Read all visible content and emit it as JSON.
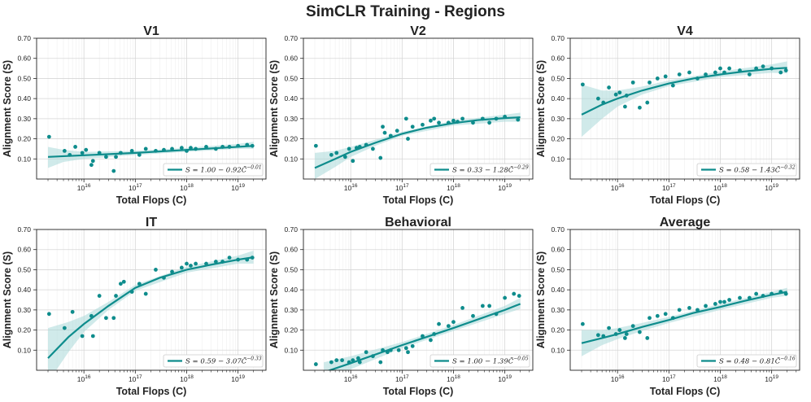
{
  "figure": {
    "title": "SimCLR Training - Regions"
  },
  "colors": {
    "teal": "#0e8c8c",
    "band": "#a9d9d9"
  },
  "chart_data": [
    {
      "type": "scatter",
      "title": "V1",
      "xlabel": "Total Flops (C)",
      "ylabel": "Alignment Score (S)",
      "xscale": "log",
      "xlim": [
        1200000000000000.0,
        3.5e+19
      ],
      "ylim": [
        0.0,
        0.7
      ],
      "x_ticks": [
        1e+16,
        1e+17,
        1e+18,
        1e+19
      ],
      "x_tick_labels": [
        "10^16",
        "10^17",
        "10^18",
        "10^19"
      ],
      "y_ticks": [
        0.1,
        0.2,
        0.3,
        0.4,
        0.5,
        0.6,
        0.7
      ],
      "y_tick_labels": [
        "0.10",
        "0.20",
        "0.30",
        "0.40",
        "0.50",
        "0.60",
        "0.70"
      ],
      "legend": {
        "label_main": "S = 1.00 − 0.92",
        "label_exp": "C̃^−0.01",
        "position": "lower-right"
      },
      "points": {
        "x": [
          2100000000000000.0,
          4200000000000000.0,
          5300000000000000.0,
          6800000000000000.0,
          9300000000000000.0,
          1.1e+16,
          1.4e+16,
          1.5e+16,
          2e+16,
          2.7e+16,
          3.8e+16,
          4.2e+16,
          5.2e+16,
          8.6e+16,
          1.2e+17,
          1.6e+17,
          2.5e+17,
          3.6e+17,
          5.2e+17,
          8e+17,
          1e+18,
          1.2e+18,
          1.5e+18,
          2.4e+18,
          3.7e+18,
          5e+18,
          6.8e+18,
          1e+19,
          1.5e+19,
          1.9e+19
        ],
        "y": [
          0.21,
          0.14,
          0.12,
          0.16,
          0.13,
          0.145,
          0.07,
          0.09,
          0.13,
          0.11,
          0.04,
          0.11,
          0.13,
          0.14,
          0.12,
          0.15,
          0.14,
          0.145,
          0.15,
          0.155,
          0.14,
          0.155,
          0.15,
          0.16,
          0.15,
          0.16,
          0.16,
          0.165,
          0.17,
          0.165
        ]
      },
      "fit": {
        "x": [
          2000000000000000.0,
          1e+16,
          1e+17,
          1e+18,
          1e+19,
          2e+19
        ],
        "y": [
          0.11,
          0.118,
          0.13,
          0.145,
          0.16,
          0.165
        ]
      },
      "band": {
        "x": [
          2000000000000000.0,
          4000000000000000.0,
          1e+16,
          1e+17,
          1e+18,
          1e+19,
          2e+19
        ],
        "upper": [
          0.16,
          0.145,
          0.135,
          0.14,
          0.155,
          0.175,
          0.185
        ],
        "lower": [
          0.055,
          0.085,
          0.1,
          0.12,
          0.135,
          0.15,
          0.15
        ]
      }
    },
    {
      "type": "scatter",
      "title": "V2",
      "xlabel": "Total Flops (C)",
      "ylabel": "Alignment Score (S)",
      "xscale": "log",
      "xlim": [
        1200000000000000.0,
        3.5e+19
      ],
      "ylim": [
        0.0,
        0.7
      ],
      "x_ticks": [
        1e+16,
        1e+17,
        1e+18,
        1e+19
      ],
      "x_tick_labels": [
        "10^16",
        "10^17",
        "10^18",
        "10^19"
      ],
      "y_ticks": [
        0.1,
        0.2,
        0.3,
        0.4,
        0.5,
        0.6,
        0.7
      ],
      "y_tick_labels": [
        "0.10",
        "0.20",
        "0.30",
        "0.40",
        "0.50",
        "0.60",
        "0.70"
      ],
      "legend": {
        "label_main": "S = 0.33 − 1.28",
        "label_exp": "C̃^−0.29",
        "position": "lower-right"
      },
      "points": {
        "x": [
          2100000000000000.0,
          4200000000000000.0,
          5300000000000000.0,
          7800000000000000.0,
          9300000000000000.0,
          1.1e+16,
          1.3e+16,
          1.5e+16,
          2e+16,
          2.7e+16,
          3.8e+16,
          4.2e+16,
          4.6e+16,
          6e+16,
          8e+16,
          1.2e+17,
          1.3e+17,
          1.6e+17,
          2.5e+17,
          3.6e+17,
          4.2e+17,
          5.2e+17,
          8e+17,
          1e+18,
          1.2e+18,
          1.5e+18,
          2.4e+18,
          3.7e+18,
          5e+18,
          6.8e+18,
          1e+19,
          1.8e+19
        ],
        "y": [
          0.165,
          0.12,
          0.13,
          0.11,
          0.15,
          0.09,
          0.155,
          0.16,
          0.17,
          0.15,
          0.105,
          0.26,
          0.23,
          0.215,
          0.24,
          0.3,
          0.2,
          0.26,
          0.27,
          0.29,
          0.3,
          0.28,
          0.28,
          0.29,
          0.285,
          0.3,
          0.28,
          0.3,
          0.28,
          0.3,
          0.31,
          0.295
        ]
      },
      "fit": {
        "x": [
          2000000000000000.0,
          5000000000000000.0,
          1e+16,
          3e+16,
          1e+17,
          3e+17,
          1e+18,
          3e+18,
          1e+19,
          2e+19
        ],
        "y": [
          0.055,
          0.1,
          0.135,
          0.18,
          0.225,
          0.255,
          0.278,
          0.293,
          0.303,
          0.307
        ]
      },
      "band": {
        "x": [
          2000000000000000.0,
          5000000000000000.0,
          1e+16,
          3e+16,
          1e+17,
          1e+18,
          1e+19,
          2e+19
        ],
        "upper": [
          0.13,
          0.14,
          0.16,
          0.195,
          0.235,
          0.29,
          0.32,
          0.33
        ],
        "lower": [
          0.0,
          0.06,
          0.11,
          0.165,
          0.215,
          0.266,
          0.285,
          0.285
        ]
      }
    },
    {
      "type": "scatter",
      "title": "V4",
      "xlabel": "Total Flops (C)",
      "ylabel": "Alignment Score (S)",
      "xscale": "log",
      "xlim": [
        1200000000000000.0,
        3.5e+19
      ],
      "ylim": [
        0.0,
        0.7
      ],
      "x_ticks": [
        1e+16,
        1e+17,
        1e+18,
        1e+19
      ],
      "x_tick_labels": [
        "10^16",
        "10^17",
        "10^18",
        "10^19"
      ],
      "y_ticks": [
        0.1,
        0.2,
        0.3,
        0.4,
        0.5,
        0.6,
        0.7
      ],
      "y_tick_labels": [
        "0.10",
        "0.20",
        "0.30",
        "0.40",
        "0.50",
        "0.60",
        "0.70"
      ],
      "legend": {
        "label_main": "S = 0.58 − 1.43",
        "label_exp": "C̃^−0.32",
        "position": "lower-right"
      },
      "points": {
        "x": [
          2100000000000000.0,
          4200000000000000.0,
          5300000000000000.0,
          6800000000000000.0,
          9300000000000000.0,
          1.1e+16,
          1.4e+16,
          1.5e+16,
          2e+16,
          2.7e+16,
          3.8e+16,
          4.2e+16,
          6e+16,
          8.6e+16,
          1.2e+17,
          1.6e+17,
          2.5e+17,
          3.6e+17,
          5.2e+17,
          8e+17,
          1e+18,
          1.2e+18,
          1.5e+18,
          2.4e+18,
          3.7e+18,
          5e+18,
          6.8e+18,
          1e+19,
          1.5e+19,
          1.9e+19
        ],
        "y": [
          0.47,
          0.4,
          0.38,
          0.455,
          0.42,
          0.43,
          0.36,
          0.415,
          0.48,
          0.355,
          0.38,
          0.48,
          0.5,
          0.51,
          0.465,
          0.52,
          0.53,
          0.5,
          0.52,
          0.53,
          0.55,
          0.53,
          0.55,
          0.54,
          0.52,
          0.55,
          0.56,
          0.55,
          0.53,
          0.54
        ]
      },
      "fit": {
        "x": [
          2000000000000000.0,
          5000000000000000.0,
          1e+16,
          3e+16,
          1e+17,
          3e+17,
          1e+18,
          3e+18,
          1e+19,
          2e+19
        ],
        "y": [
          0.32,
          0.37,
          0.4,
          0.44,
          0.475,
          0.5,
          0.52,
          0.535,
          0.548,
          0.553
        ]
      },
      "band": {
        "x": [
          2000000000000000.0,
          5000000000000000.0,
          1e+16,
          3e+16,
          1e+17,
          1e+18,
          1e+19,
          2e+19
        ],
        "upper": [
          0.47,
          0.44,
          0.44,
          0.46,
          0.49,
          0.535,
          0.57,
          0.585
        ],
        "lower": [
          0.21,
          0.3,
          0.36,
          0.42,
          0.462,
          0.507,
          0.528,
          0.525
        ]
      }
    },
    {
      "type": "scatter",
      "title": "IT",
      "xlabel": "Total Flops (C)",
      "ylabel": "Alignment Score (S)",
      "xscale": "log",
      "xlim": [
        1200000000000000.0,
        3.5e+19
      ],
      "ylim": [
        0.0,
        0.7
      ],
      "x_ticks": [
        1e+16,
        1e+17,
        1e+18,
        1e+19
      ],
      "x_tick_labels": [
        "10^16",
        "10^17",
        "10^18",
        "10^19"
      ],
      "y_ticks": [
        0.1,
        0.2,
        0.3,
        0.4,
        0.5,
        0.6,
        0.7
      ],
      "y_tick_labels": [
        "0.10",
        "0.20",
        "0.30",
        "0.40",
        "0.50",
        "0.60",
        "0.70"
      ],
      "legend": {
        "label_main": "S = 0.59 − 3.07",
        "label_exp": "C̃^−0.33",
        "position": "lower-right"
      },
      "points": {
        "x": [
          2100000000000000.0,
          4200000000000000.0,
          6000000000000000.0,
          9300000000000000.0,
          1.4e+16,
          1.5e+16,
          2e+16,
          2.7e+16,
          3.8e+16,
          4.2e+16,
          5.2e+16,
          6e+16,
          8.6e+16,
          1.2e+17,
          1.6e+17,
          2.5e+17,
          3.6e+17,
          5.2e+17,
          8e+17,
          1e+18,
          1.2e+18,
          1.5e+18,
          2.4e+18,
          3.7e+18,
          5e+18,
          6.8e+18,
          1e+19,
          1.5e+19,
          1.9e+19
        ],
        "y": [
          0.28,
          0.21,
          0.29,
          0.17,
          0.27,
          0.17,
          0.37,
          0.26,
          0.26,
          0.37,
          0.43,
          0.44,
          0.39,
          0.43,
          0.38,
          0.5,
          0.46,
          0.49,
          0.51,
          0.53,
          0.52,
          0.53,
          0.53,
          0.54,
          0.54,
          0.56,
          0.55,
          0.55,
          0.56
        ]
      },
      "fit": {
        "x": [
          2000000000000000.0,
          5000000000000000.0,
          1e+16,
          3e+16,
          1e+17,
          3e+17,
          1e+18,
          3e+18,
          1e+19,
          2e+19
        ],
        "y": [
          0.06,
          0.165,
          0.23,
          0.32,
          0.41,
          0.46,
          0.5,
          0.525,
          0.55,
          0.562
        ]
      },
      "band": {
        "x": [
          2000000000000000.0,
          5000000000000000.0,
          1e+16,
          3e+16,
          1e+17,
          1e+18,
          1e+19,
          2e+19
        ],
        "upper": [
          0.21,
          0.24,
          0.27,
          0.34,
          0.425,
          0.515,
          0.57,
          0.595
        ],
        "lower": [
          -0.06,
          0.09,
          0.19,
          0.3,
          0.395,
          0.485,
          0.53,
          0.53
        ]
      }
    },
    {
      "type": "scatter",
      "title": "Behavioral",
      "xlabel": "Total Flops (C)",
      "ylabel": "Alignment Score (S)",
      "xscale": "log",
      "xlim": [
        1200000000000000.0,
        3.5e+19
      ],
      "ylim": [
        0.0,
        0.7
      ],
      "x_ticks": [
        1e+16,
        1e+17,
        1e+18,
        1e+19
      ],
      "x_tick_labels": [
        "10^16",
        "10^17",
        "10^18",
        "10^19"
      ],
      "y_ticks": [
        0.1,
        0.2,
        0.3,
        0.4,
        0.5,
        0.6,
        0.7
      ],
      "y_tick_labels": [
        "0.10",
        "0.20",
        "0.30",
        "0.40",
        "0.50",
        "0.60",
        "0.70"
      ],
      "legend": {
        "label_main": "S = 1.00 − 1.39",
        "label_exp": "C̃^−0.05",
        "position": "lower-right"
      },
      "points": {
        "x": [
          2100000000000000.0,
          4200000000000000.0,
          5300000000000000.0,
          6800000000000000.0,
          9300000000000000.0,
          1.1e+16,
          1.4e+16,
          1.5e+16,
          2e+16,
          2.7e+16,
          3.8e+16,
          4.2e+16,
          5.2e+16,
          6e+16,
          8.6e+16,
          1.2e+17,
          1.3e+17,
          1.6e+17,
          2.5e+17,
          3.6e+17,
          4.2e+17,
          5.2e+17,
          8e+17,
          1e+18,
          1.5e+18,
          2.4e+18,
          3.7e+18,
          5e+18,
          6.8e+18,
          1e+19,
          1.5e+19,
          1.9e+19
        ],
        "y": [
          0.03,
          0.04,
          0.05,
          0.05,
          0.04,
          0.05,
          0.06,
          0.04,
          0.09,
          0.07,
          0.04,
          0.1,
          0.09,
          0.1,
          0.1,
          0.11,
          0.09,
          0.12,
          0.17,
          0.15,
          0.18,
          0.23,
          0.22,
          0.24,
          0.31,
          0.27,
          0.32,
          0.32,
          0.28,
          0.36,
          0.38,
          0.37
        ]
      },
      "fit": {
        "x": [
          3000000000000000.0,
          1e+16,
          1e+17,
          1e+18,
          1e+19,
          2e+19
        ],
        "y": [
          -0.01,
          0.035,
          0.125,
          0.21,
          0.3,
          0.33
        ]
      },
      "band": {
        "x": [
          3000000000000000.0,
          1e+16,
          1e+17,
          1e+18,
          1e+19,
          2e+19
        ],
        "upper": [
          0.04,
          0.07,
          0.14,
          0.225,
          0.32,
          0.36
        ],
        "lower": [
          -0.06,
          0.005,
          0.11,
          0.195,
          0.28,
          0.305
        ]
      }
    },
    {
      "type": "scatter",
      "title": "Average",
      "xlabel": "Total Flops (C)",
      "ylabel": "Alignment Score (S)",
      "xscale": "log",
      "xlim": [
        1200000000000000.0,
        3.5e+19
      ],
      "ylim": [
        0.0,
        0.7
      ],
      "x_ticks": [
        1e+16,
        1e+17,
        1e+18,
        1e+19
      ],
      "x_tick_labels": [
        "10^16",
        "10^17",
        "10^18",
        "10^19"
      ],
      "y_ticks": [
        0.1,
        0.2,
        0.3,
        0.4,
        0.5,
        0.6,
        0.7
      ],
      "y_tick_labels": [
        "0.10",
        "0.20",
        "0.30",
        "0.40",
        "0.50",
        "0.60",
        "0.70"
      ],
      "legend": {
        "label_main": "S = 0.48 − 0.81",
        "label_exp": "C̃^−0.16",
        "position": "lower-right"
      },
      "points": {
        "x": [
          2100000000000000.0,
          4200000000000000.0,
          5300000000000000.0,
          6800000000000000.0,
          9300000000000000.0,
          1.1e+16,
          1.4e+16,
          1.5e+16,
          2e+16,
          2.7e+16,
          3.8e+16,
          4.2e+16,
          6e+16,
          8.6e+16,
          1.2e+17,
          1.6e+17,
          2.5e+17,
          3.6e+17,
          5.2e+17,
          8e+17,
          1e+18,
          1.2e+18,
          1.5e+18,
          2.4e+18,
          3.7e+18,
          5e+18,
          6.8e+18,
          1e+19,
          1.5e+19,
          1.9e+19
        ],
        "y": [
          0.23,
          0.175,
          0.17,
          0.21,
          0.18,
          0.2,
          0.16,
          0.18,
          0.22,
          0.19,
          0.16,
          0.26,
          0.27,
          0.28,
          0.26,
          0.3,
          0.31,
          0.3,
          0.32,
          0.33,
          0.34,
          0.34,
          0.35,
          0.36,
          0.36,
          0.38,
          0.37,
          0.38,
          0.39,
          0.38
        ]
      },
      "fit": {
        "x": [
          2000000000000000.0,
          5000000000000000.0,
          1e+16,
          3e+16,
          1e+17,
          3e+17,
          1e+18,
          3e+18,
          1e+19,
          2e+19
        ],
        "y": [
          0.135,
          0.16,
          0.18,
          0.215,
          0.25,
          0.285,
          0.315,
          0.345,
          0.375,
          0.39
        ]
      },
      "band": {
        "x": [
          2000000000000000.0,
          5000000000000000.0,
          1e+16,
          3e+16,
          1e+17,
          1e+18,
          1e+19,
          2e+19
        ],
        "upper": [
          0.2,
          0.2,
          0.21,
          0.235,
          0.265,
          0.33,
          0.39,
          0.41
        ],
        "lower": [
          0.07,
          0.125,
          0.155,
          0.195,
          0.235,
          0.3,
          0.36,
          0.37
        ]
      }
    }
  ]
}
